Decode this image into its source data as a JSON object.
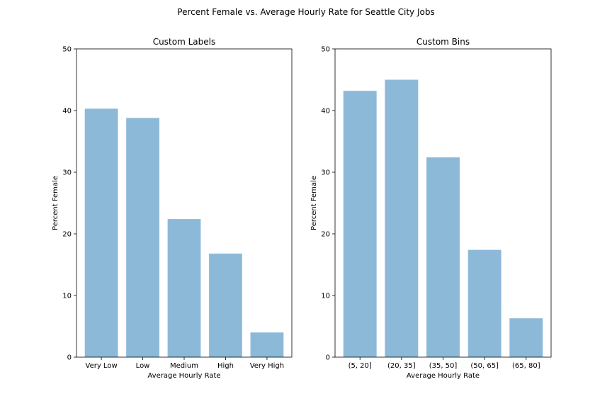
{
  "suptitle": "Percent Female vs. Average Hourly Rate for Seattle City Jobs",
  "chart_data": [
    {
      "type": "bar",
      "title": "Custom Labels",
      "xlabel": "Average Hourly Rate",
      "ylabel": "Percent Female",
      "categories": [
        "Very Low",
        "Low",
        "Medium",
        "High",
        "Very High"
      ],
      "values": [
        40.3,
        38.8,
        22.4,
        16.8,
        4.0
      ],
      "ylim": [
        0,
        50
      ],
      "yticks": [
        0,
        10,
        20,
        30,
        40,
        50
      ],
      "bar_color": "#8db9d9",
      "grid": false
    },
    {
      "type": "bar",
      "title": "Custom Bins",
      "xlabel": "Average Hourly Rate",
      "ylabel": "Percent Female",
      "categories": [
        "(5, 20]",
        "(20, 35]",
        "(35, 50]",
        "(50, 65]",
        "(65, 80]"
      ],
      "values": [
        43.2,
        45.0,
        32.4,
        17.4,
        6.3
      ],
      "ylim": [
        0,
        50
      ],
      "yticks": [
        0,
        10,
        20,
        30,
        40,
        50
      ],
      "bar_color": "#8db9d9",
      "grid": false
    }
  ]
}
